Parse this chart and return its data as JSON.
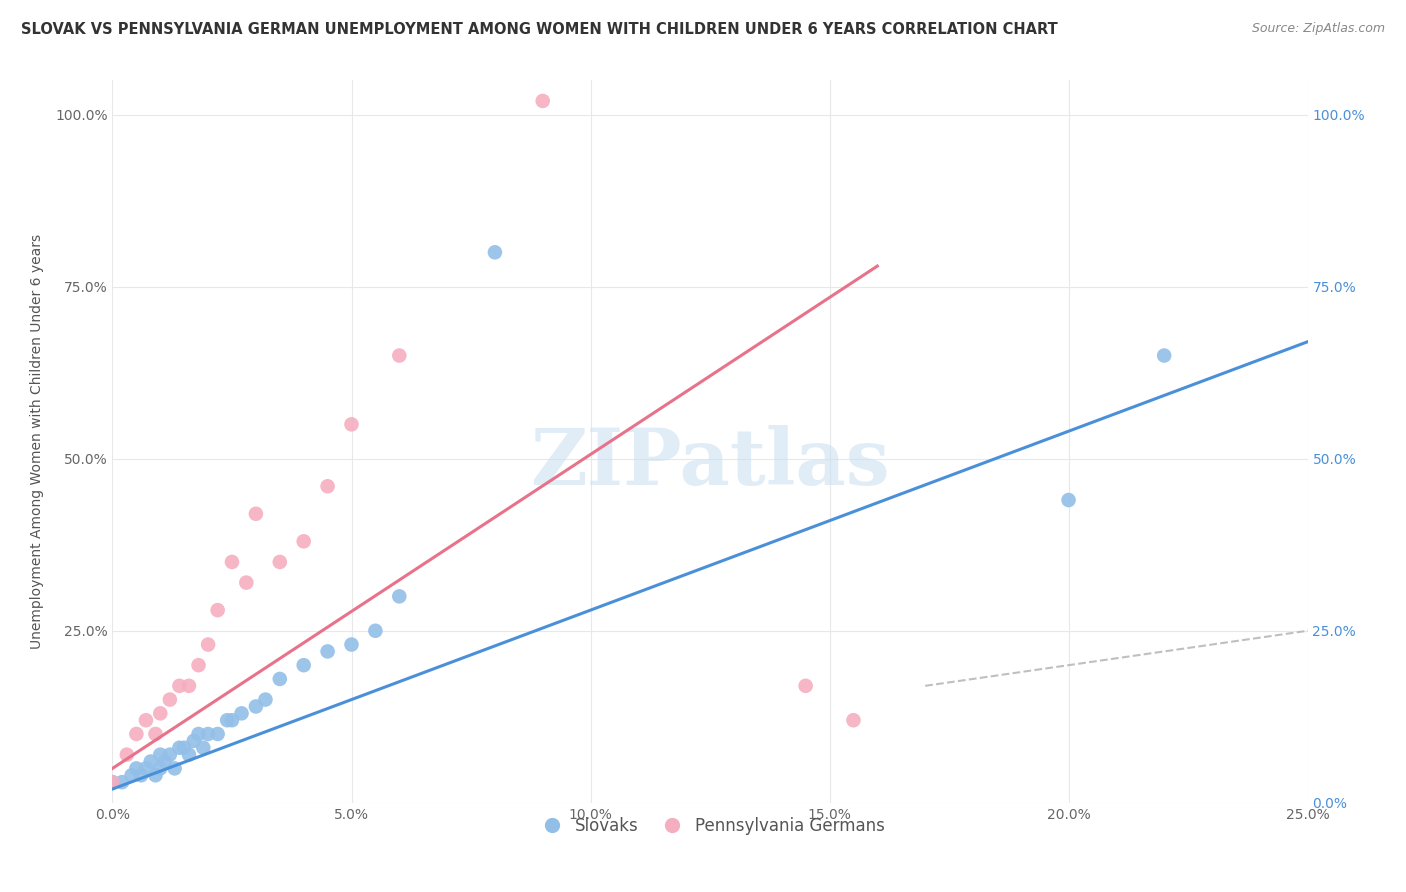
{
  "title": "SLOVAK VS PENNSYLVANIA GERMAN UNEMPLOYMENT AMONG WOMEN WITH CHILDREN UNDER 6 YEARS CORRELATION CHART",
  "source": "Source: ZipAtlas.com",
  "ylabel": "Unemployment Among Women with Children Under 6 years",
  "xlim": [
    0,
    0.25
  ],
  "ylim": [
    0,
    1.05
  ],
  "x_ticks": [
    0.0,
    0.05,
    0.1,
    0.15,
    0.2,
    0.25
  ],
  "y_ticks": [
    0.0,
    0.25,
    0.5,
    0.75,
    1.0
  ],
  "x_tick_labels": [
    "0.0%",
    "5.0%",
    "10.0%",
    "15.0%",
    "20.0%",
    "25.0%"
  ],
  "y_tick_labels_left": [
    "",
    "25.0%",
    "50.0%",
    "75.0%",
    "100.0%"
  ],
  "y_tick_labels_right": [
    "0.0%",
    "25.0%",
    "50.0%",
    "75.0%",
    "100.0%"
  ],
  "blue_color": "#92bfe8",
  "pink_color": "#f5aec0",
  "blue_line_color": "#4a90d9",
  "pink_line_color": "#e8728a",
  "ref_line_color": "#b0b0b0",
  "grid_color": "#e8e8e8",
  "title_color": "#333333",
  "right_axis_color": "#4a90d9",
  "blue_scatter_x": [
    0.0,
    0.002,
    0.004,
    0.005,
    0.006,
    0.007,
    0.008,
    0.009,
    0.01,
    0.01,
    0.011,
    0.012,
    0.013,
    0.014,
    0.015,
    0.016,
    0.017,
    0.018,
    0.019,
    0.02,
    0.022,
    0.024,
    0.025,
    0.027,
    0.03,
    0.032,
    0.035,
    0.04,
    0.045,
    0.05,
    0.055,
    0.06,
    0.08,
    0.2,
    0.22
  ],
  "blue_scatter_y": [
    0.03,
    0.03,
    0.04,
    0.05,
    0.04,
    0.05,
    0.06,
    0.04,
    0.05,
    0.07,
    0.06,
    0.07,
    0.05,
    0.08,
    0.08,
    0.07,
    0.09,
    0.1,
    0.08,
    0.1,
    0.1,
    0.12,
    0.12,
    0.13,
    0.14,
    0.15,
    0.18,
    0.2,
    0.22,
    0.23,
    0.25,
    0.3,
    0.8,
    0.44,
    0.65
  ],
  "pink_scatter_x": [
    0.0,
    0.003,
    0.005,
    0.007,
    0.009,
    0.01,
    0.012,
    0.014,
    0.016,
    0.018,
    0.02,
    0.022,
    0.025,
    0.028,
    0.03,
    0.035,
    0.04,
    0.045,
    0.05,
    0.06,
    0.09,
    0.145,
    0.155
  ],
  "pink_scatter_y": [
    0.03,
    0.07,
    0.1,
    0.12,
    0.1,
    0.13,
    0.15,
    0.17,
    0.17,
    0.2,
    0.23,
    0.28,
    0.35,
    0.32,
    0.42,
    0.35,
    0.38,
    0.46,
    0.55,
    0.65,
    1.02,
    0.17,
    0.12
  ],
  "blue_line_x": [
    0.0,
    0.25
  ],
  "blue_line_y": [
    0.02,
    0.67
  ],
  "pink_line_x": [
    0.0,
    0.16
  ],
  "pink_line_y": [
    0.05,
    0.78
  ],
  "ref_line_x": [
    0.17,
    0.255
  ],
  "ref_line_y": [
    0.17,
    0.255
  ],
  "watermark": "ZIPatlas",
  "legend_label_blue": "Slovaks",
  "legend_label_pink": "Pennsylvania Germans"
}
